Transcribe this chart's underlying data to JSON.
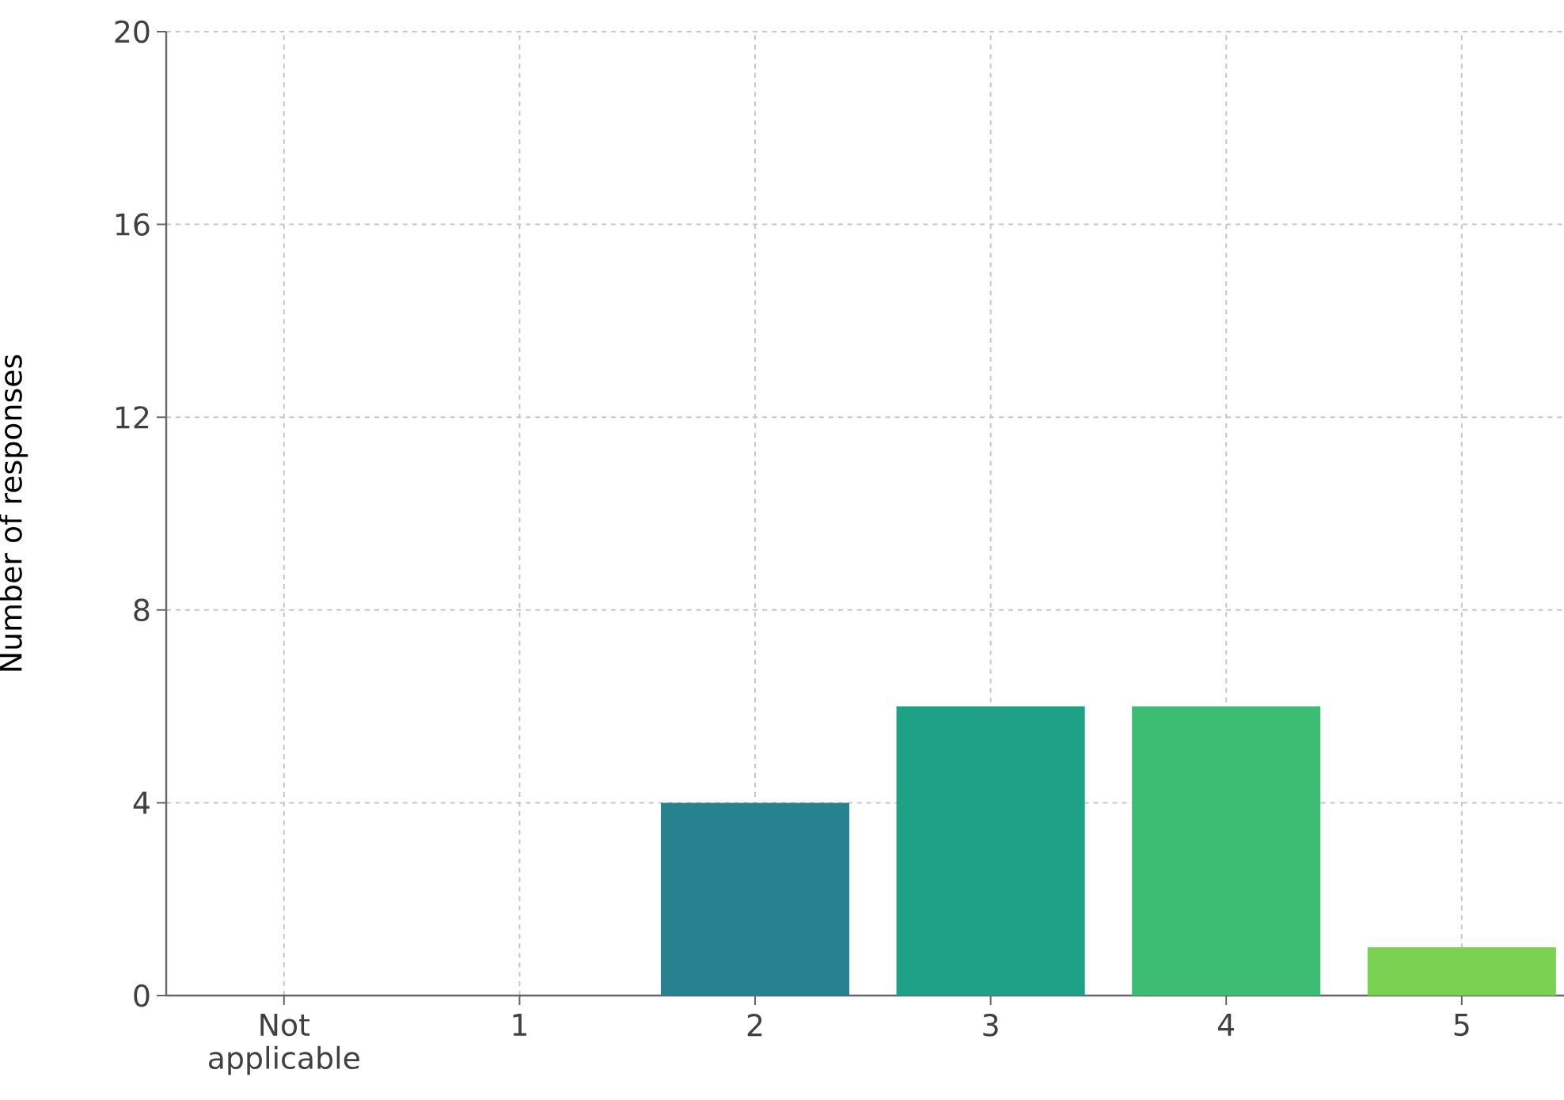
{
  "chart_data": {
    "type": "bar",
    "ylabel": "Number of responses",
    "categories": [
      "Not applicable",
      "1",
      "2",
      "3",
      "4",
      "5"
    ],
    "values": [
      0,
      0,
      4,
      6,
      6,
      1
    ],
    "colors": [
      "#46327e",
      "#365c8d",
      "#26828e",
      "#1fa187",
      "#3dbc74",
      "#7ad151"
    ],
    "ylim": [
      0,
      20
    ],
    "yticks": [
      0,
      4,
      8,
      12,
      16,
      20
    ],
    "grid": true
  }
}
